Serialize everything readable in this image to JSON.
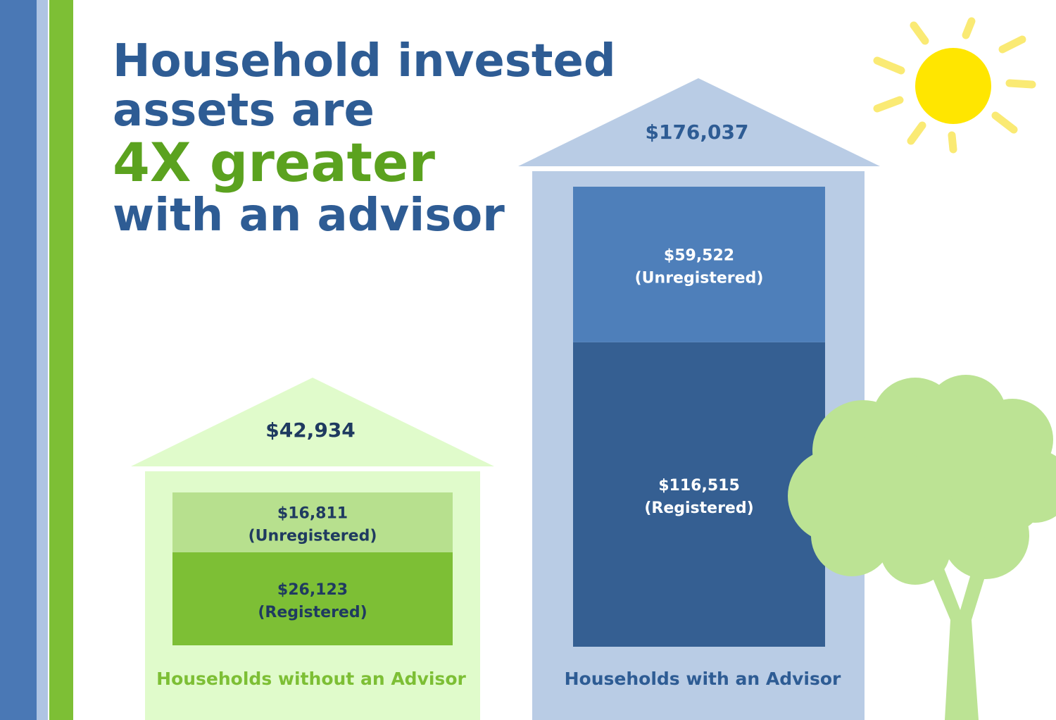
{
  "title": {
    "line1": "Household invested",
    "line2": "assets are",
    "line3": "4X greater",
    "line4": "with an advisor"
  },
  "colors": {
    "stripe_blue": "#4A78B5",
    "stripe_light": "#AFC4E3",
    "stripe_green": "#7DBF35",
    "title_blue": "#2E5C94",
    "title_green": "#5BA21F",
    "house_without": "#E0FBCB",
    "unregistered_without": "#B7E08E",
    "registered_without": "#7DBF35",
    "house_with": "#B9CCE5",
    "unregistered_with": "#4E7FBA",
    "registered_with": "#355F92",
    "tree": "#BCE394",
    "sun": "#FFE600",
    "sun_rays": "#FAEA74"
  },
  "chart_data": {
    "type": "bar",
    "stacked": true,
    "categories": [
      "Households without an Advisor",
      "Households with an Advisor"
    ],
    "totals": [
      {
        "value": 42934,
        "label": "$42,934"
      },
      {
        "value": 176037,
        "label": "$176,037"
      }
    ],
    "series": [
      {
        "name": "(Registered)",
        "values": [
          26123,
          116515
        ],
        "labels": [
          "$26,123",
          "$116,515"
        ]
      },
      {
        "name": "(Unregistered)",
        "values": [
          16811,
          59522
        ],
        "labels": [
          "$16,811",
          "$59,522"
        ]
      }
    ]
  },
  "decorations": [
    "sun-icon",
    "tree-icon"
  ]
}
